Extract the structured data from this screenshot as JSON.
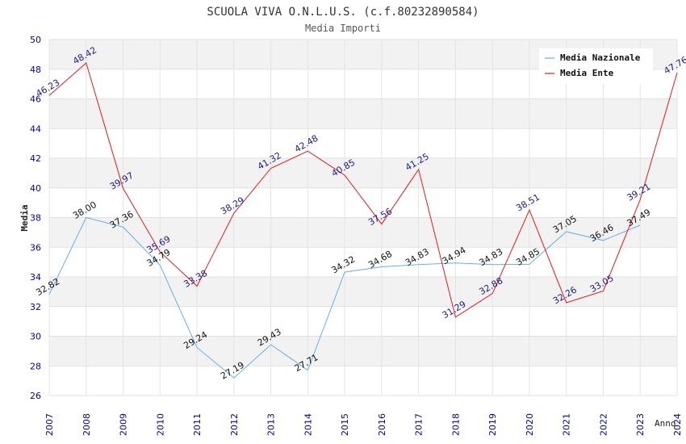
{
  "chart_data": {
    "type": "line",
    "title": "SCUOLA VIVA O.N.L.U.S. (c.f.80232890584)",
    "subtitle": "Media Importi",
    "xlabel": "Anno",
    "ylabel": "Media",
    "ylim": [
      26,
      50
    ],
    "yticks": [
      "26",
      "28",
      "30",
      "32",
      "34",
      "36",
      "38",
      "40",
      "42",
      "44",
      "46",
      "48",
      "50"
    ],
    "categories": [
      "2007",
      "2008",
      "2009",
      "2010",
      "2011",
      "2012",
      "2013",
      "2014",
      "2015",
      "2016",
      "2017",
      "2018",
      "2019",
      "2020",
      "2021",
      "2022",
      "2023",
      "2024"
    ],
    "legend_position": "top-right",
    "series": [
      {
        "name": "Media Nazionale",
        "color": "#6aaee8",
        "values": [
          32.82,
          38.0,
          37.36,
          34.79,
          29.24,
          27.19,
          29.43,
          27.71,
          34.32,
          34.68,
          34.83,
          34.94,
          34.83,
          34.85,
          37.05,
          36.46,
          37.49,
          null
        ],
        "labels": [
          "32.82",
          "38.00",
          "37.36",
          "34.79",
          "29.24",
          "27.19",
          "29.43",
          "27.71",
          "34.32",
          "34.68",
          "34.83",
          "34.94",
          "34.83",
          "34.85",
          "37.05",
          "36.46",
          "37.49",
          ""
        ]
      },
      {
        "name": "Media Ente",
        "color": "#e41a1c",
        "values": [
          46.23,
          48.42,
          39.97,
          35.69,
          33.38,
          38.29,
          41.32,
          42.48,
          40.85,
          37.56,
          41.25,
          31.29,
          32.88,
          38.51,
          32.26,
          33.05,
          39.21,
          47.76
        ],
        "labels": [
          "46.23",
          "48.42",
          "39.97",
          "35.69",
          "33.38",
          "38.29",
          "41.32",
          "42.48",
          "40.85",
          "37.56",
          "41.25",
          "31.29",
          "32.88",
          "38.51",
          "32.26",
          "33.05",
          "39.21",
          "47.76"
        ]
      }
    ]
  }
}
